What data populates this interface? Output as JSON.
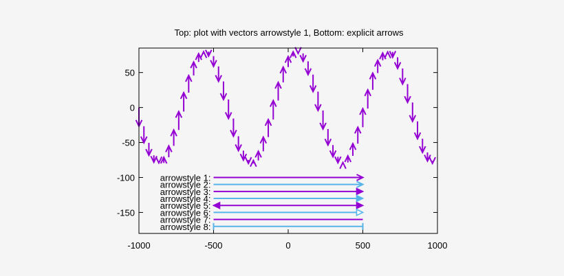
{
  "chart_data": {
    "type": "line",
    "title": "Top: plot with vectors arrowstyle 1, Bottom: explicit arrows",
    "xlabel": "",
    "ylabel": "",
    "xlim": [
      -1000,
      1000
    ],
    "ylim": [
      -180,
      85
    ],
    "x_ticks": [
      -1000,
      -500,
      0,
      500,
      1000
    ],
    "y_ticks": [
      50,
      0,
      -50,
      -100,
      -150
    ],
    "x_tick_labels": [
      "-1000",
      "-500",
      "0",
      "500",
      "1000"
    ],
    "y_tick_labels": [
      "50",
      "0",
      "-50",
      "-100",
      "-150"
    ],
    "grid": false,
    "colors": {
      "purple": "#9400d3",
      "blue": "#56b4e9",
      "frame": "#000000",
      "background": "#f5f5f5"
    },
    "vectors": {
      "style": "arrowstyle 1",
      "x_start": -1000,
      "x_step": 33.33,
      "count": 60,
      "amplitude": 80,
      "period": 614,
      "phase_x": -1000,
      "arrow_length_scale": 1.0
    },
    "arrows": [
      {
        "label": "arrowstyle 1:",
        "y": -100,
        "from": -500,
        "to": 500,
        "color": "#9400d3",
        "head": "open-end"
      },
      {
        "label": "arrowstyle 2:",
        "y": -110,
        "from": -500,
        "to": 500,
        "color": "#56b4e9",
        "head": "open-end"
      },
      {
        "label": "arrowstyle 3:",
        "y": -120,
        "from": -500,
        "to": 500,
        "color": "#9400d3",
        "head": "filled-end"
      },
      {
        "label": "arrowstyle 4:",
        "y": -130,
        "from": -500,
        "to": 500,
        "color": "#56b4e9",
        "head": "filled-end"
      },
      {
        "label": "arrowstyle 5:",
        "y": -140,
        "from": -500,
        "to": 500,
        "color": "#9400d3",
        "head": "filled-both"
      },
      {
        "label": "arrowstyle 6:",
        "y": -150,
        "from": -500,
        "to": 500,
        "color": "#56b4e9",
        "head": "empty-end"
      },
      {
        "label": "arrowstyle 7:",
        "y": -160,
        "from": -500,
        "to": 500,
        "color": "#9400d3",
        "head": "none"
      },
      {
        "label": "arrowstyle 8:",
        "y": -170,
        "from": -500,
        "to": 500,
        "color": "#56b4e9",
        "head": "bar-both"
      }
    ]
  }
}
